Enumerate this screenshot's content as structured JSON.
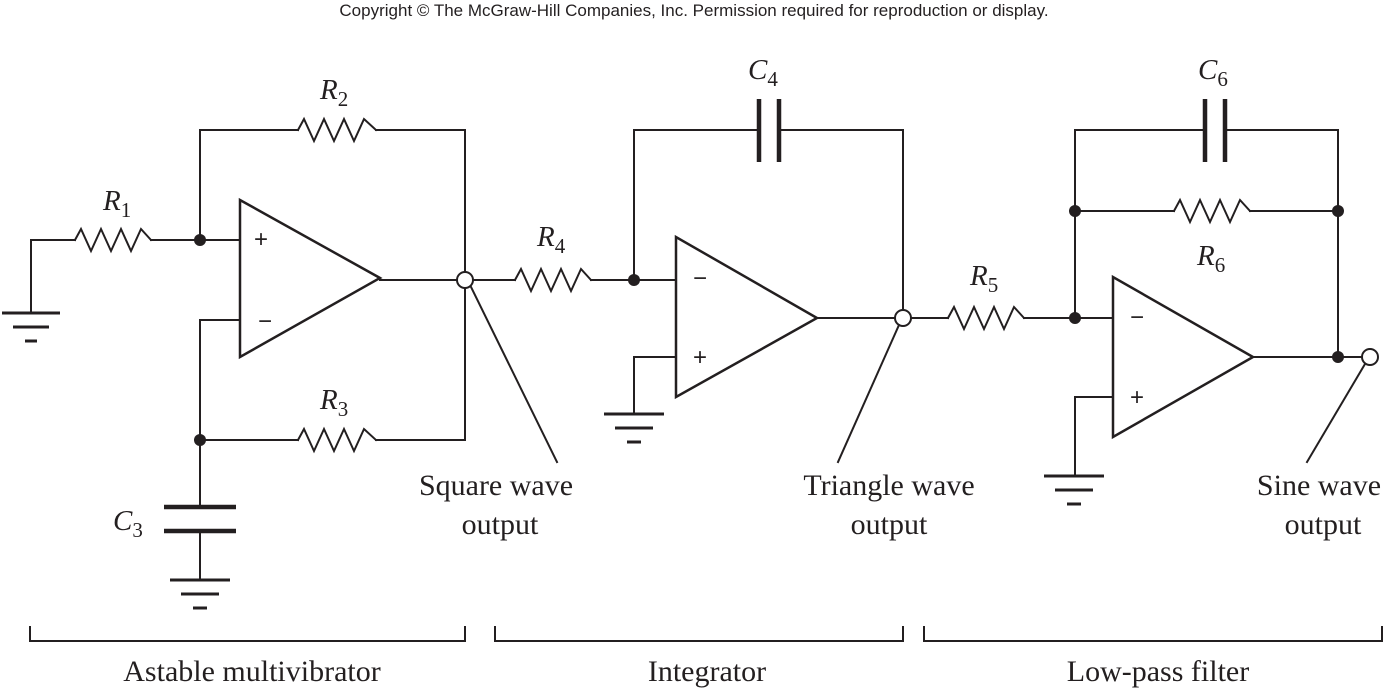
{
  "copyright": "Copyright © The McGraw-Hill Companies, Inc. Permission required for reproduction or display.",
  "components": {
    "R1": {
      "letter": "R",
      "sub": "1"
    },
    "R2": {
      "letter": "R",
      "sub": "2"
    },
    "R3": {
      "letter": "R",
      "sub": "3"
    },
    "R4": {
      "letter": "R",
      "sub": "4"
    },
    "R5": {
      "letter": "R",
      "sub": "5"
    },
    "R6": {
      "letter": "R",
      "sub": "6"
    },
    "C3": {
      "letter": "C",
      "sub": "3"
    },
    "C4": {
      "letter": "C",
      "sub": "4"
    },
    "C6": {
      "letter": "C",
      "sub": "6"
    }
  },
  "opamp_inputs": {
    "plus": "+",
    "minus": "−"
  },
  "outputs": {
    "square": {
      "line1": "Square wave",
      "line2": "output"
    },
    "triangle": {
      "line1": "Triangle wave",
      "line2": "output"
    },
    "sine": {
      "line1": "Sine wave",
      "line2": "output"
    }
  },
  "sections": {
    "astable": "Astable multivibrator",
    "integrator": "Integrator",
    "lowpass": "Low-pass filter"
  }
}
